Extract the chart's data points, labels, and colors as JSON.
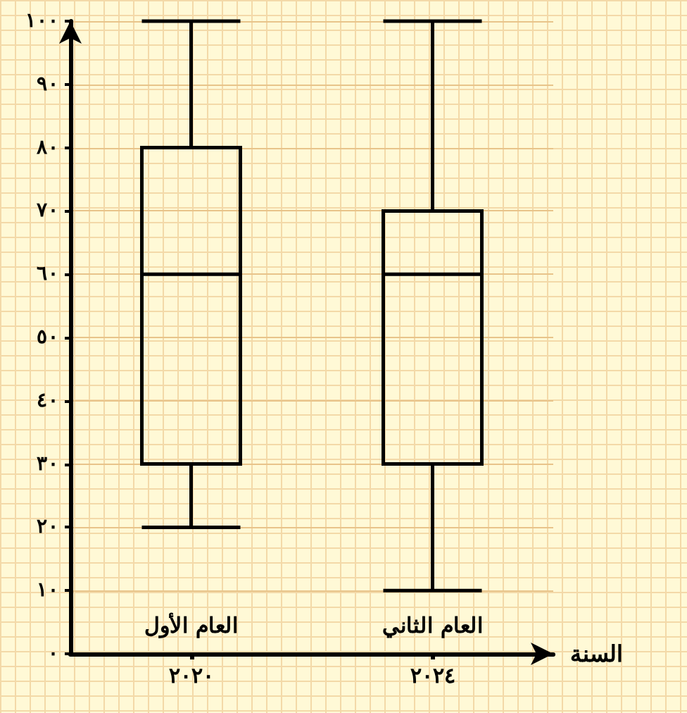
{
  "chart_data": {
    "type": "box",
    "xlabel": "السنة",
    "categories": [
      "٢٠٢٠",
      "٢٠٢٤"
    ],
    "boxes": [
      {
        "low": 20,
        "q1": 30,
        "median": 60,
        "q3": 80,
        "high": 100
      },
      {
        "low": 10,
        "q1": 30,
        "median": 60,
        "q3": 70,
        "high": 100
      }
    ],
    "color": "#000000",
    "ylim": [
      0,
      100
    ],
    "yticks": [
      {
        "value": 0,
        "label": "٠"
      },
      {
        "value": 10,
        "label": "١٠"
      },
      {
        "value": 20,
        "label": "٢٠"
      },
      {
        "value": 30,
        "label": "٣٠"
      },
      {
        "value": 40,
        "label": "٤٠"
      },
      {
        "value": 50,
        "label": "٥٠"
      },
      {
        "value": 60,
        "label": "٦٠"
      },
      {
        "value": 70,
        "label": "٧٠"
      },
      {
        "value": 80,
        "label": "٨٠"
      },
      {
        "value": 90,
        "label": "٩٠"
      },
      {
        "value": 100,
        "label": "١٠٠"
      }
    ],
    "annotations": [
      "العام الأول",
      "العام الثاني"
    ],
    "grid": true
  }
}
